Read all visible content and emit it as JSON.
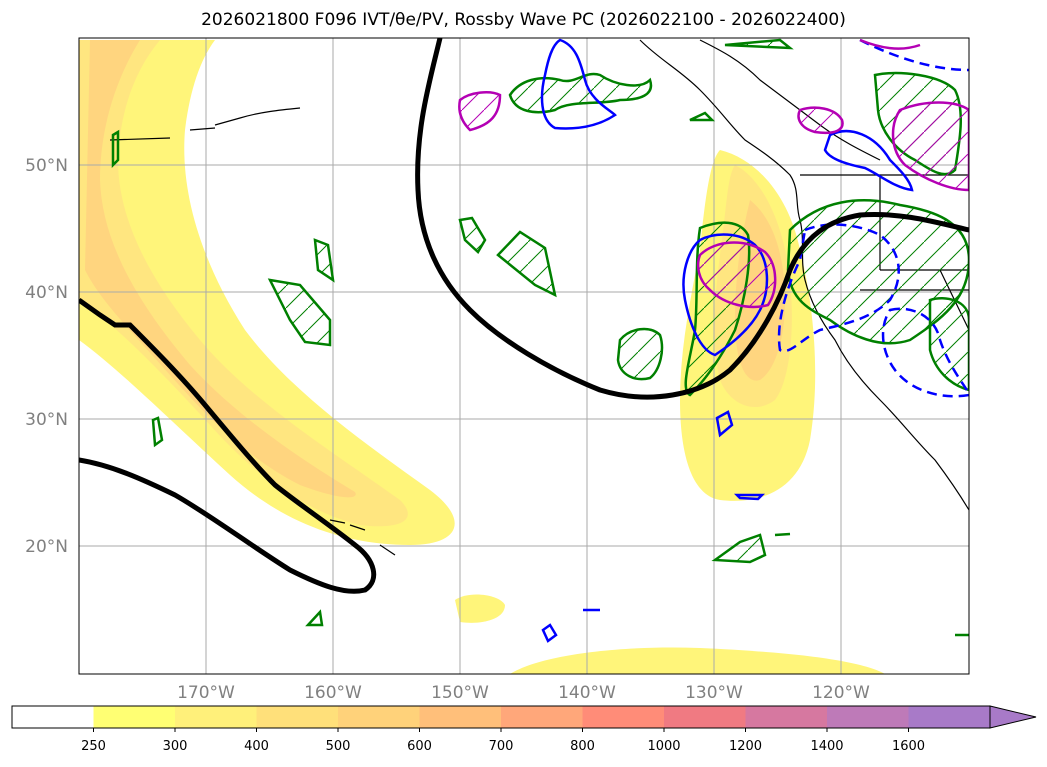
{
  "title": "2026021800 F096 IVT/θe/PV, Rossby Wave PC (2026022100 - 2026022400)",
  "map": {
    "lat_labels": [
      "50°N",
      "40°N",
      "30°N",
      "20°N"
    ],
    "lon_labels": [
      "170°W",
      "160°W",
      "150°W",
      "140°W",
      "130°W",
      "120°W"
    ],
    "lat_values": [
      50,
      40,
      30,
      20
    ],
    "lon_values": [
      -170,
      -160,
      -150,
      -140,
      -130,
      -120
    ]
  },
  "colorbar": {
    "levels": [
      "250",
      "300",
      "400",
      "500",
      "600",
      "700",
      "800",
      "1000",
      "1200",
      "1400",
      "1600"
    ],
    "colors": [
      "#ffffff",
      "#ffff73",
      "#fff07a",
      "#ffe07a",
      "#ffd27a",
      "#ffbf7a",
      "#ffa77a",
      "#ff8c78",
      "#f07a82",
      "#d678a0",
      "#be7ab8",
      "#a87ac8"
    ],
    "extend": "max"
  },
  "colors": {
    "ivt_light": "#fff57a",
    "ivt_mid": "#ffe680",
    "ivt_dark": "#ffd57f",
    "pv_contour": "#000000",
    "green_contour": "#008000",
    "blue_contour": "#0000ff",
    "magenta_contour": "#b400b4",
    "coast": "#000000",
    "grid": "#aaaaaa"
  }
}
